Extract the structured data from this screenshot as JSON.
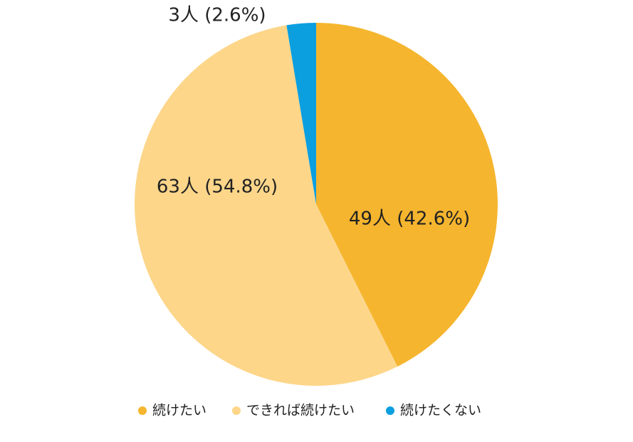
{
  "chart_data": {
    "type": "pie",
    "categories": [
      "続けたい",
      "できれば続けたい",
      "続けたくない"
    ],
    "values": [
      49,
      63,
      3
    ],
    "value_labels": [
      "49人 (42.6%)",
      "63人 (54.8%)",
      "3人 (2.6%)"
    ],
    "colors": [
      "#f5b52e",
      "#fdd68a",
      "#0b9fe0"
    ]
  }
}
